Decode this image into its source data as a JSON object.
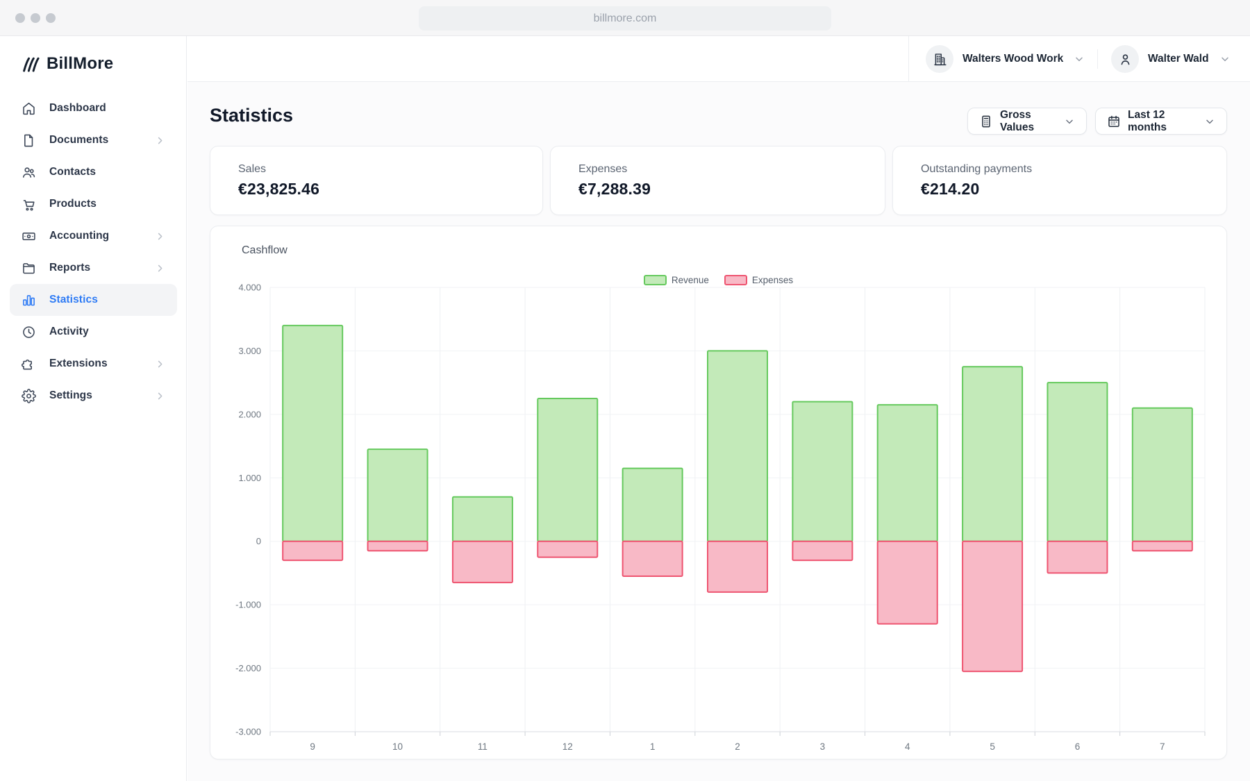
{
  "browser": {
    "url": "billmore.com"
  },
  "brand": {
    "name": "BillMore"
  },
  "sidebar": {
    "items": [
      {
        "label": "Dashboard",
        "icon": "home-icon",
        "chevron": false,
        "active": false
      },
      {
        "label": "Documents",
        "icon": "document-icon",
        "chevron": true,
        "active": false
      },
      {
        "label": "Contacts",
        "icon": "contacts-icon",
        "chevron": false,
        "active": false
      },
      {
        "label": "Products",
        "icon": "cart-icon",
        "chevron": false,
        "active": false
      },
      {
        "label": "Accounting",
        "icon": "banknote-icon",
        "chevron": true,
        "active": false
      },
      {
        "label": "Reports",
        "icon": "folder-icon",
        "chevron": true,
        "active": false
      },
      {
        "label": "Statistics",
        "icon": "bar-chart-icon",
        "chevron": false,
        "active": true
      },
      {
        "label": "Activity",
        "icon": "clock-icon",
        "chevron": false,
        "active": false
      },
      {
        "label": "Extensions",
        "icon": "puzzle-icon",
        "chevron": true,
        "active": false
      },
      {
        "label": "Settings",
        "icon": "gear-icon",
        "chevron": true,
        "active": false
      }
    ]
  },
  "header": {
    "company": {
      "label": "Walters Wood Work",
      "icon": "building-icon"
    },
    "user": {
      "label": "Walter Wald",
      "icon": "person-icon"
    }
  },
  "page": {
    "title": "Statistics"
  },
  "filters": {
    "values_mode": {
      "label": "Gross Values",
      "icon": "calculator-icon"
    },
    "date_range": {
      "label": "Last 12 months",
      "icon": "calendar-icon"
    }
  },
  "stats": [
    {
      "label": "Sales",
      "value": "€23,825.46"
    },
    {
      "label": "Expenses",
      "value": "€7,288.39"
    },
    {
      "label": "Outstanding payments",
      "value": "€214.20"
    }
  ],
  "colors": {
    "accent_blue": "#2e7bf5",
    "revenue_green_fill": "#c3eab9",
    "revenue_green_border": "#65c95d",
    "expense_red_fill": "#f8b9c6",
    "expense_red_border": "#ee5470"
  },
  "chart_data": {
    "type": "bar",
    "title": "Cashflow",
    "categories": [
      "9",
      "10",
      "11",
      "12",
      "1",
      "2",
      "3",
      "4",
      "5",
      "6",
      "7"
    ],
    "series": [
      {
        "name": "Revenue",
        "color": "#c3eab9",
        "border": "#65c95d",
        "values": [
          3400,
          1450,
          700,
          2250,
          1150,
          3000,
          2200,
          2150,
          2750,
          2500,
          2100
        ]
      },
      {
        "name": "Expenses",
        "color": "#f8b9c6",
        "border": "#ee5470",
        "values": [
          -300,
          -150,
          -650,
          -250,
          -550,
          -800,
          -300,
          -1300,
          -2050,
          -500,
          -150
        ]
      }
    ],
    "ylim": [
      -3000,
      4000
    ],
    "yticks": [
      4000,
      3000,
      2000,
      1000,
      0,
      -1000,
      -2000,
      -3000
    ],
    "ytick_labels": [
      "4.000",
      "3.000",
      "2.000",
      "1.000",
      "0",
      "-1.000",
      "-2.000",
      "-3.000"
    ],
    "grid": true,
    "legend_position": "top-center",
    "xlabel": "",
    "ylabel": ""
  }
}
